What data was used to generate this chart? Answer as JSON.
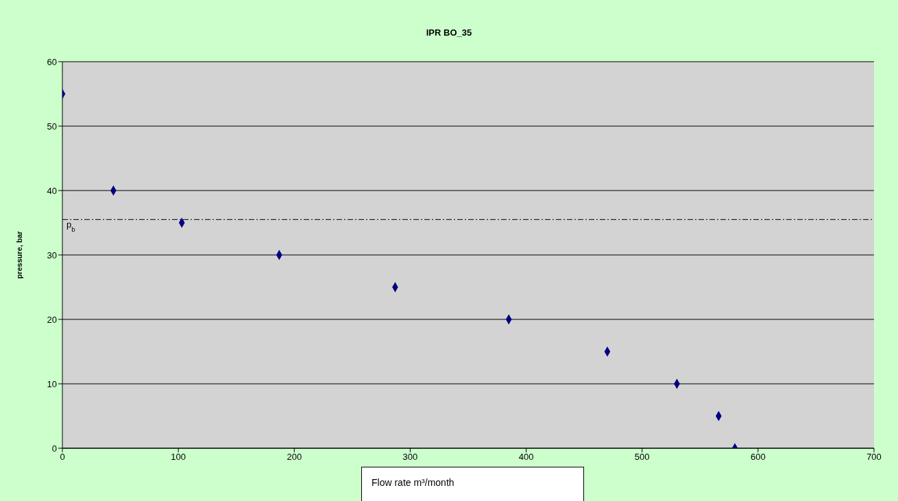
{
  "chart_data": {
    "type": "scatter",
    "title": "IPR BO_35",
    "xlabel": "Flow rate m³/month",
    "ylabel": "pressure, bar",
    "x": [
      0,
      44,
      103,
      187,
      287,
      385,
      470,
      530,
      566,
      580
    ],
    "series": [
      {
        "color": "#000080",
        "values": [
          55,
          40,
          35,
          30,
          25,
          20,
          15,
          10,
          5,
          0
        ]
      }
    ],
    "xlim": [
      0,
      700
    ],
    "xticks": [
      0,
      100,
      200,
      300,
      400,
      500,
      600,
      700
    ],
    "ylim": [
      0,
      60
    ],
    "yticks": [
      0,
      10,
      20,
      30,
      40,
      50,
      60
    ],
    "grid": "y",
    "marker": "diamond",
    "ref_lines": [
      {
        "axis": "y",
        "value": 35.5,
        "label": "p$_{b}$",
        "line_style": "dashdot",
        "color": "#000000"
      }
    ]
  }
}
